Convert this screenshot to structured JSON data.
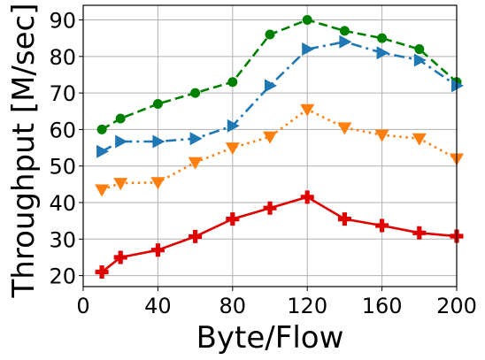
{
  "chart_data": {
    "type": "line",
    "title": "",
    "xlabel": "Byte/Flow",
    "ylabel": "Throughput [M/sec]",
    "xlim": [
      0,
      200
    ],
    "ylim": [
      17,
      94
    ],
    "xticks": [
      "0",
      "40",
      "80",
      "120",
      "160",
      "200"
    ],
    "yticks": [
      "20",
      "30",
      "40",
      "50",
      "60",
      "70",
      "80",
      "90"
    ],
    "grid": true,
    "x": [
      10,
      20,
      40,
      60,
      80,
      100,
      120,
      140,
      160,
      180,
      200
    ],
    "series": [
      {
        "color": "#008000",
        "marker": "circle",
        "linestyle": "dashed",
        "values": [
          60,
          63,
          67,
          70,
          73,
          86,
          90,
          87,
          85,
          82,
          73
        ]
      },
      {
        "color": "#1f77b4",
        "marker": "triangle-right",
        "linestyle": "dashdot",
        "values": [
          54,
          56.7,
          56.7,
          57.5,
          61,
          72,
          82,
          84,
          81,
          79,
          72
        ]
      },
      {
        "color": "#ff7f0e",
        "marker": "triangle-down",
        "linestyle": "dotted",
        "values": [
          43.5,
          45.3,
          45.5,
          51,
          55,
          58,
          65.5,
          60.5,
          58.5,
          57.5,
          52
        ]
      },
      {
        "color": "#e00000",
        "marker": "plus",
        "linestyle": "solid",
        "values": [
          21,
          25,
          27,
          30.7,
          35.5,
          38.5,
          41.5,
          35.5,
          33.7,
          31.7,
          30.8
        ]
      }
    ]
  }
}
